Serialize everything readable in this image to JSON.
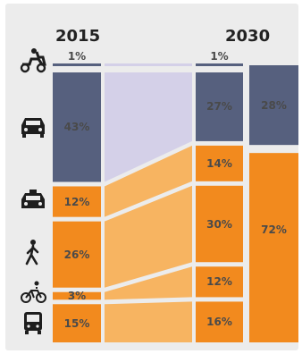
{
  "chart_data": {
    "type": "area",
    "title": "",
    "years": [
      "2015",
      "2030"
    ],
    "categories": [
      "scooter",
      "car",
      "shared-car",
      "walking",
      "cycling",
      "bus"
    ],
    "y2015": [
      {
        "category": "scooter",
        "value": 1,
        "label": "1%"
      },
      {
        "category": "car",
        "value": 43,
        "label": "43%"
      },
      {
        "category": "shared-car",
        "value": 12,
        "label": "12%"
      },
      {
        "category": "walking",
        "value": 26,
        "label": "26%"
      },
      {
        "category": "cycling",
        "value": 3,
        "label": "3%"
      },
      {
        "category": "bus",
        "value": 15,
        "label": "15%"
      }
    ],
    "y2030": [
      {
        "category": "scooter",
        "value": 1,
        "label": "1%"
      },
      {
        "category": "car",
        "value": 27,
        "label": "27%"
      },
      {
        "category": "shared-car",
        "value": 14,
        "label": "14%"
      },
      {
        "category": "walking",
        "value": 30,
        "label": "30%"
      },
      {
        "category": "cycling",
        "value": 12,
        "label": "12%"
      },
      {
        "category": "bus",
        "value": 16,
        "label": "16%"
      }
    ],
    "totals_2030": [
      {
        "group": "private",
        "value": 28,
        "label": "28%"
      },
      {
        "group": "shared",
        "value": 72,
        "label": "72%"
      }
    ],
    "colors": {
      "private": "#56607e",
      "shared": "#f28a1e",
      "flow_private": "#d4d0e8",
      "flow_shared": "#f7b461",
      "background": "#ececec"
    }
  }
}
